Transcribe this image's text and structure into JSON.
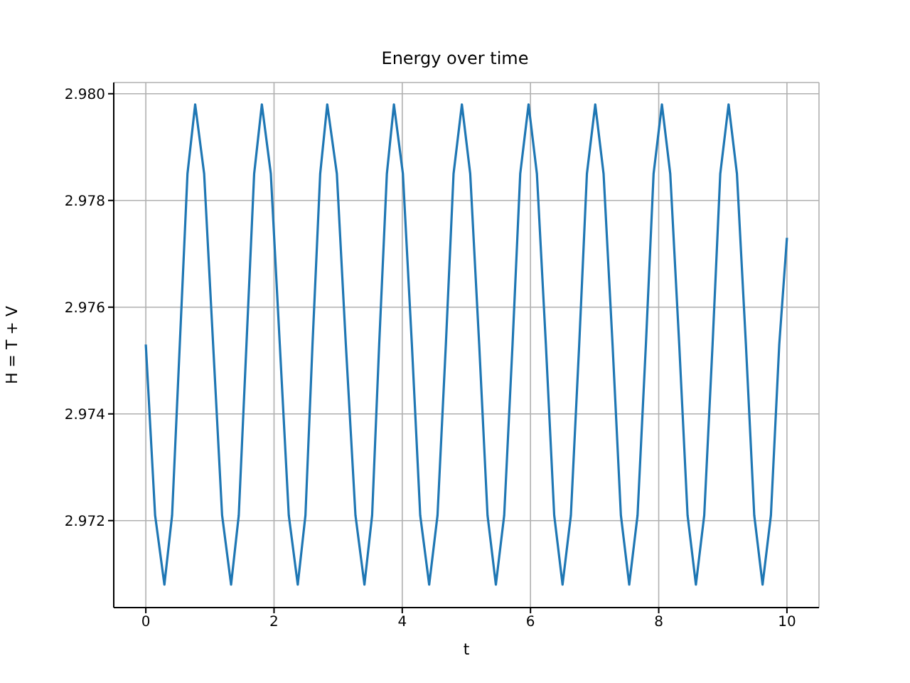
{
  "chart_data": {
    "type": "line",
    "title": "Energy over time",
    "xlabel": "t",
    "ylabel": "H = T + V",
    "xlim": [
      -0.5,
      10.5
    ],
    "xticks": [
      0,
      2,
      4,
      6,
      8,
      10
    ],
    "ylim": [
      2.97037,
      2.98021
    ],
    "yticks": [
      2.972,
      2.974,
      2.976,
      2.978,
      {
        "value": 2.98,
        "label": "2.980"
      }
    ],
    "grid": true,
    "x": [
      0,
      0.145,
      0.29,
      0.41,
      0.53,
      0.65,
      0.77,
      0.91,
      1.05,
      1.19,
      1.33,
      1.45,
      1.57,
      1.69,
      1.81,
      1.95,
      2.09,
      2.23,
      2.37,
      2.49,
      2.6,
      2.72,
      2.83,
      2.98,
      3.12,
      3.27,
      3.41,
      3.53,
      3.64,
      3.76,
      3.87,
      4.01,
      4.15,
      4.28,
      4.42,
      4.55,
      4.68,
      4.8,
      4.93,
      5.06,
      5.2,
      5.33,
      5.46,
      5.59,
      5.72,
      5.84,
      5.97,
      6.1,
      6.24,
      6.37,
      6.5,
      6.63,
      6.76,
      6.88,
      7.01,
      7.14,
      7.28,
      7.41,
      7.54,
      7.67,
      7.8,
      7.92,
      8.05,
      8.18,
      8.32,
      8.45,
      8.58,
      8.71,
      8.84,
      8.96,
      9.09,
      9.22,
      9.36,
      9.49,
      9.62,
      9.75,
      9.88,
      10
    ],
    "series": [
      {
        "color": "#1f77b4",
        "values": [
          2.9753,
          2.9721,
          2.9708,
          2.9721,
          2.9753,
          2.9785,
          2.9798,
          2.9785,
          2.9753,
          2.9721,
          2.9708,
          2.9721,
          2.9753,
          2.9785,
          2.9798,
          2.9785,
          2.9753,
          2.9721,
          2.9708,
          2.9721,
          2.9753,
          2.9785,
          2.9798,
          2.9785,
          2.9753,
          2.9721,
          2.9708,
          2.9721,
          2.9753,
          2.9785,
          2.9798,
          2.9785,
          2.9753,
          2.9721,
          2.9708,
          2.9721,
          2.9753,
          2.9785,
          2.9798,
          2.9785,
          2.9753,
          2.9721,
          2.9708,
          2.9721,
          2.9753,
          2.9785,
          2.9798,
          2.9785,
          2.9753,
          2.9721,
          2.9708,
          2.9721,
          2.9753,
          2.9785,
          2.9798,
          2.9785,
          2.9753,
          2.9721,
          2.9708,
          2.9721,
          2.9753,
          2.9785,
          2.9798,
          2.9785,
          2.9753,
          2.9721,
          2.9708,
          2.9721,
          2.9753,
          2.9785,
          2.9798,
          2.9785,
          2.9753,
          2.9721,
          2.9708,
          2.9721,
          2.9753,
          2.9773
        ]
      }
    ]
  }
}
